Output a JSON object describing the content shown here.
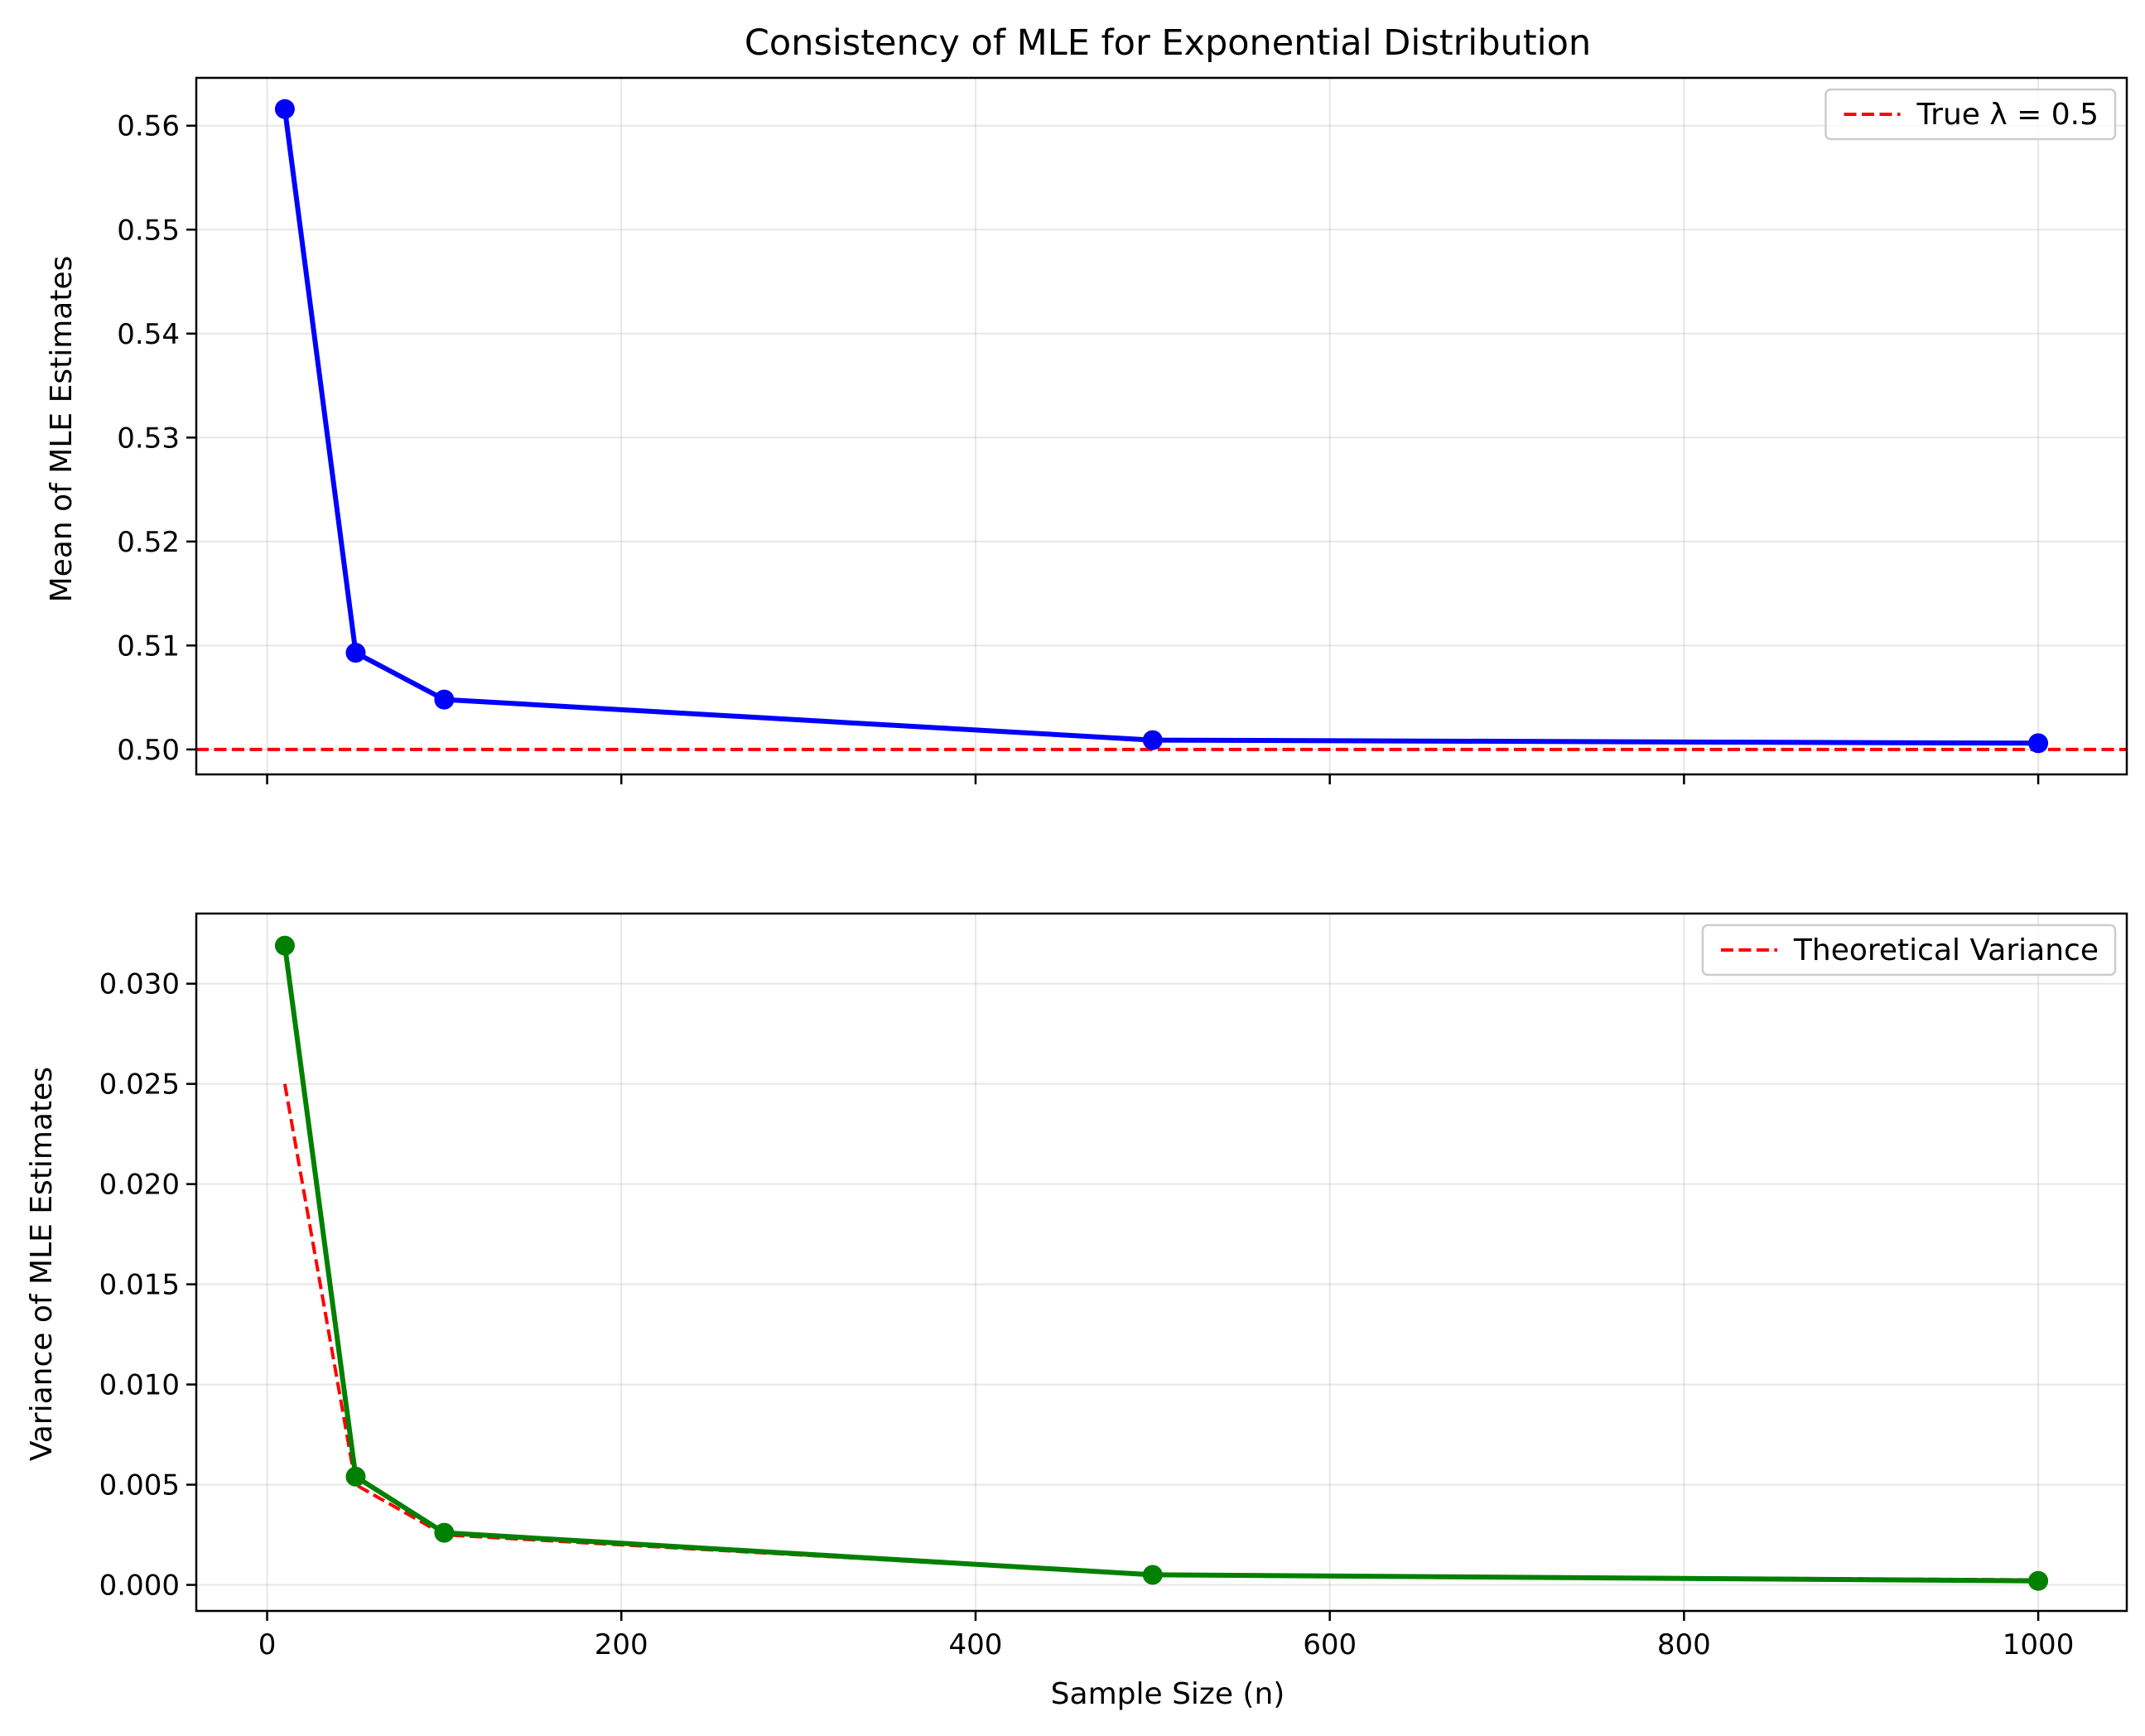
{
  "chart_data": [
    {
      "type": "line",
      "title": "Consistency of MLE for Exponential Distribution",
      "xlabel": "",
      "ylabel": "Mean of MLE Estimates",
      "xlim": [
        -40,
        1050
      ],
      "ylim": [
        0.4976,
        0.5646
      ],
      "xticks": [
        0,
        200,
        400,
        600,
        800,
        1000
      ],
      "xtick_labels": [],
      "yticks": [
        0.5,
        0.51,
        0.52,
        0.53,
        0.54,
        0.55,
        0.56
      ],
      "ytick_labels": [
        "0.50",
        "0.51",
        "0.52",
        "0.53",
        "0.54",
        "0.55",
        "0.56"
      ],
      "grid": true,
      "legend_position": "top-right",
      "x": [
        10,
        50,
        100,
        500,
        1000
      ],
      "series": [
        {
          "values": [
            0.5616,
            0.5093,
            0.5048,
            0.5009,
            0.5006
          ],
          "color": "#0000ff",
          "style": "solid",
          "marker": "circle"
        }
      ],
      "reference_lines": [
        {
          "name": "True λ = 0.5",
          "y": 0.5,
          "color": "#ff0000",
          "style": "dashed"
        }
      ]
    },
    {
      "type": "line",
      "title": "",
      "xlabel": "Sample Size (n)",
      "ylabel": "Variance of MLE Estimates",
      "xlim": [
        -40,
        1050
      ],
      "ylim": [
        -0.0013,
        0.0335
      ],
      "xticks": [
        0,
        200,
        400,
        600,
        800,
        1000
      ],
      "xtick_labels": [
        "0",
        "200",
        "400",
        "600",
        "800",
        "1000"
      ],
      "yticks": [
        0.0,
        0.005,
        0.01,
        0.015,
        0.02,
        0.025,
        0.03
      ],
      "ytick_labels": [
        "0.000",
        "0.005",
        "0.010",
        "0.015",
        "0.020",
        "0.025",
        "0.030"
      ],
      "grid": true,
      "legend_position": "top-right",
      "x": [
        10,
        50,
        100,
        500,
        1000
      ],
      "series": [
        {
          "values": [
            0.0319,
            0.0054,
            0.0026,
            0.0005,
            0.0002
          ],
          "color": "#008000",
          "style": "solid",
          "marker": "circle"
        },
        {
          "name": "Theoretical Variance",
          "values": [
            0.025,
            0.005,
            0.0025,
            0.0005,
            0.00025
          ],
          "color": "#ff0000",
          "style": "dashed",
          "marker": "none"
        }
      ]
    }
  ]
}
